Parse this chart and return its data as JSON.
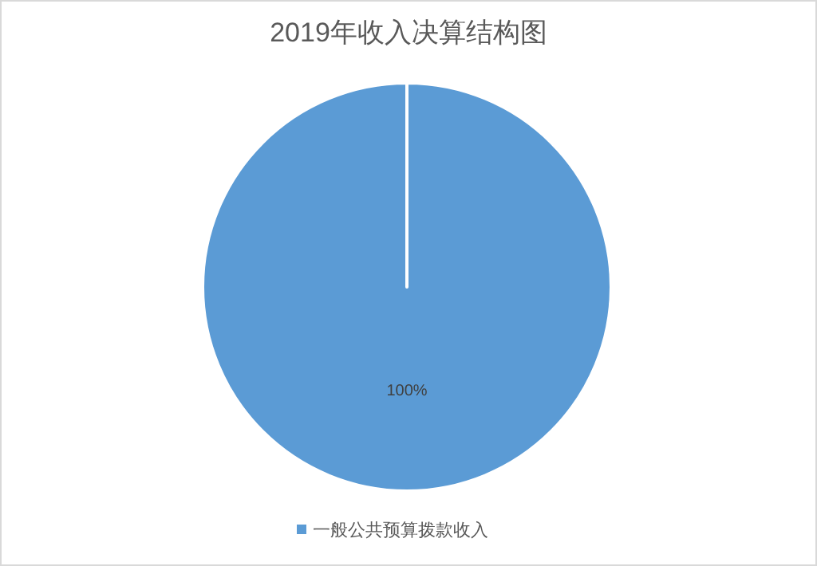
{
  "chart_data": {
    "type": "pie",
    "title": "2019年收入决算结构图",
    "categories": [
      "一般公共预算拨款收入"
    ],
    "values": [
      100
    ],
    "colors": [
      "#5b9bd5"
    ],
    "value_labels": [
      "100%"
    ],
    "legend": "bottom"
  }
}
